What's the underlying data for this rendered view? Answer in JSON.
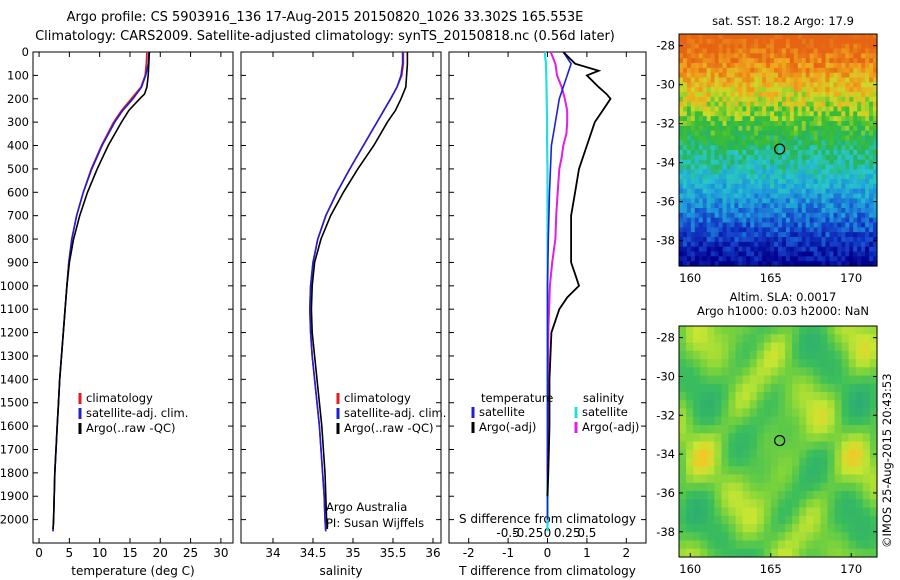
{
  "header": {
    "line1": "Argo profile: CS 5903916_136 17-Aug-2015 20150820_1026 33.302S 165.553E",
    "line2": "Climatology: CARS2009. Satellite-adjusted climatology: synTS_20150818.nc (0.56d later)"
  },
  "colors": {
    "climatology": "#e41a1c",
    "satellite_adj": "#1f1fd6",
    "argo": "#000000",
    "salinity_sat": "#22e0e0",
    "salinity_argo": "#e21ee2"
  },
  "chart_data": [
    {
      "type": "line",
      "panel": "temperature",
      "xlabel": "temperature (deg C)",
      "ylim": [
        2100,
        0
      ],
      "xlim": [
        -1,
        32
      ],
      "xticks": [
        0,
        5,
        10,
        15,
        20,
        25,
        30
      ],
      "yticks": [
        0,
        100,
        200,
        300,
        400,
        500,
        600,
        700,
        800,
        900,
        1000,
        1100,
        1200,
        1300,
        1400,
        1500,
        1600,
        1700,
        1800,
        1900,
        2000
      ],
      "legend": [
        "climatology",
        "satellite-adj. clim.",
        "Argo(..raw -QC)"
      ],
      "series": [
        {
          "name": "climatology",
          "depth": [
            0,
            50,
            100,
            150,
            200,
            250,
            300,
            400,
            500,
            600,
            700,
            800,
            900,
            1000,
            1100,
            1200,
            1300,
            1400,
            1500,
            1600,
            1700,
            1800,
            1900,
            2000,
            2050
          ],
          "values": [
            17.8,
            17.7,
            17.5,
            16.8,
            15.2,
            13.6,
            12.3,
            10.3,
            8.6,
            7.3,
            6.2,
            5.4,
            4.9,
            4.6,
            4.3,
            4.0,
            3.7,
            3.4,
            3.2,
            3.0,
            2.8,
            2.6,
            2.5,
            2.4,
            2.3
          ]
        },
        {
          "name": "satellite-adj. clim.",
          "depth": [
            0,
            50,
            100,
            150,
            200,
            250,
            300,
            400,
            500,
            600,
            700,
            800,
            900,
            1000,
            1100,
            1200,
            1300,
            1400,
            1500,
            1600,
            1700,
            1800,
            1900,
            2000,
            2050
          ],
          "values": [
            18.1,
            18.0,
            17.6,
            16.9,
            15.5,
            13.8,
            12.5,
            10.4,
            8.7,
            7.3,
            6.2,
            5.4,
            4.9,
            4.6,
            4.3,
            4.0,
            3.7,
            3.4,
            3.2,
            3.0,
            2.8,
            2.6,
            2.5,
            2.4,
            2.3
          ]
        },
        {
          "name": "Argo(..raw -QC)",
          "depth": [
            0,
            50,
            100,
            150,
            180,
            200,
            250,
            300,
            400,
            500,
            600,
            700,
            800,
            900,
            1000,
            1100,
            1200,
            1300,
            1400,
            1500,
            1600,
            1700,
            1800,
            1900,
            2000,
            2040
          ],
          "values": [
            18.2,
            18.1,
            18.0,
            17.8,
            17.4,
            16.6,
            14.8,
            13.6,
            11.4,
            9.6,
            8.0,
            6.7,
            5.7,
            5.0,
            4.6,
            4.3,
            4.0,
            3.7,
            3.4,
            3.2,
            3.0,
            2.8,
            2.6,
            2.5,
            2.4,
            2.3
          ]
        }
      ]
    },
    {
      "type": "line",
      "panel": "salinity",
      "xlabel": "salinity",
      "ylim": [
        2100,
        0
      ],
      "xlim": [
        33.6,
        36.1
      ],
      "xticks": [
        34,
        34.5,
        35,
        35.5,
        36
      ],
      "legend": [
        "climatology",
        "satellite-adj. clim.",
        "Argo(..raw -QC)"
      ],
      "annotation": [
        "Argo Australia",
        "PI: Susan Wijffels"
      ],
      "series": [
        {
          "name": "climatology",
          "depth": [
            0,
            50,
            100,
            150,
            200,
            300,
            400,
            500,
            600,
            700,
            800,
            900,
            1000,
            1100,
            1200,
            1300,
            1400,
            1500,
            1600,
            1700,
            1800,
            1900,
            2000,
            2050
          ],
          "values": [
            35.63,
            35.63,
            35.61,
            35.55,
            35.47,
            35.3,
            35.13,
            34.96,
            34.8,
            34.66,
            34.56,
            34.5,
            34.47,
            34.46,
            34.47,
            34.49,
            34.52,
            34.55,
            34.58,
            34.6,
            34.62,
            34.64,
            34.65,
            34.66
          ]
        },
        {
          "name": "satellite-adj. clim.",
          "depth": [
            0,
            50,
            100,
            150,
            200,
            300,
            400,
            500,
            600,
            700,
            800,
            900,
            1000,
            1100,
            1200,
            1300,
            1400,
            1500,
            1600,
            1700,
            1800,
            1900,
            2000,
            2050
          ],
          "values": [
            35.62,
            35.62,
            35.6,
            35.55,
            35.47,
            35.3,
            35.13,
            34.96,
            34.8,
            34.66,
            34.56,
            34.5,
            34.47,
            34.46,
            34.47,
            34.49,
            34.52,
            34.55,
            34.58,
            34.6,
            34.62,
            34.64,
            34.65,
            34.66
          ]
        },
        {
          "name": "Argo(..raw -QC)",
          "depth": [
            0,
            50,
            100,
            150,
            200,
            250,
            300,
            400,
            500,
            600,
            700,
            800,
            900,
            1000,
            1100,
            1200,
            1300,
            1400,
            1500,
            1600,
            1700,
            1800,
            1900,
            2000,
            2040
          ],
          "values": [
            35.68,
            35.68,
            35.67,
            35.66,
            35.6,
            35.53,
            35.43,
            35.26,
            35.06,
            34.88,
            34.72,
            34.6,
            34.52,
            34.49,
            34.48,
            34.49,
            34.52,
            34.55,
            34.58,
            34.61,
            34.63,
            34.65,
            34.66,
            34.67,
            34.68
          ]
        }
      ]
    },
    {
      "type": "line",
      "panel": "difference",
      "xlabel": "T difference from climatology",
      "xlabel_top": "S difference from climatology",
      "ylim": [
        2100,
        0
      ],
      "xlim": [
        -2.5,
        2.5
      ],
      "xticks_T": [
        -2,
        -1,
        0,
        1,
        2
      ],
      "xticks_S": [
        "-0.5",
        "-0.25",
        "0",
        "0.25",
        "0.5"
      ],
      "legend_temperature": [
        "temperature",
        "satellite",
        "Argo(-adj)"
      ],
      "legend_salinity": [
        "salinity",
        "satellite",
        "Argo(-adj)"
      ],
      "series": [
        {
          "name": "temperature satellite",
          "depth": [
            0,
            50,
            100,
            200,
            300,
            400,
            600,
            800,
            1000,
            1100,
            2000
          ],
          "values": [
            0.4,
            0.6,
            0.5,
            0.3,
            0.2,
            0.1,
            0.05,
            0.02,
            0.0,
            0.0,
            0.0
          ]
        },
        {
          "name": "temperature Argo(-adj)",
          "depth": [
            0,
            50,
            80,
            100,
            150,
            180,
            200,
            250,
            300,
            400,
            500,
            600,
            700,
            800,
            900,
            950,
            1000,
            1050,
            1100,
            1200,
            1400,
            1600,
            1800,
            1900
          ],
          "values": [
            0.4,
            0.7,
            1.3,
            1.0,
            1.3,
            1.5,
            1.6,
            1.4,
            1.2,
            1.0,
            0.8,
            0.7,
            0.6,
            0.6,
            0.6,
            0.7,
            0.8,
            0.5,
            0.3,
            0.1,
            0.05,
            0.05,
            0.02,
            0.0
          ]
        },
        {
          "name": "salinity satellite",
          "depth": [
            0,
            50,
            100,
            200,
            300,
            400,
            500,
            800,
            1000,
            2050
          ],
          "values": [
            -0.07,
            -0.04,
            -0.03,
            -0.02,
            -0.01,
            -0.01,
            0.0,
            0.0,
            0.0,
            0.0
          ]
        },
        {
          "name": "salinity Argo(-adj)",
          "depth": [
            0,
            50,
            100,
            150,
            200,
            250,
            300,
            350,
            400,
            450,
            500,
            600,
            700,
            800,
            900,
            1000,
            1100,
            1200,
            1500,
            1800
          ],
          "values": [
            0.04,
            0.1,
            0.12,
            0.18,
            0.22,
            0.25,
            0.25,
            0.24,
            0.2,
            0.18,
            0.15,
            0.13,
            0.11,
            0.1,
            0.06,
            0.03,
            0.02,
            0.01,
            0.01,
            0.0
          ]
        }
      ]
    },
    {
      "type": "heatmap",
      "panel": "sst",
      "title": "sat. SST: 18.2  Argo: 17.9",
      "xticks": [
        160,
        165,
        170
      ],
      "yticks": [
        -28,
        -30,
        -32,
        -34,
        -36,
        -38
      ],
      "marker": {
        "lon": 165.553,
        "lat": -33.302
      }
    },
    {
      "type": "heatmap",
      "panel": "sla",
      "title": [
        "Altim. SLA: 0.0017",
        "Argo h1000: 0.03 h2000: NaN"
      ],
      "xticks": [
        160,
        165,
        170
      ],
      "yticks": [
        -28,
        -30,
        -32,
        -34,
        -36,
        -38
      ],
      "marker": {
        "lon": 165.553,
        "lat": -33.302
      }
    }
  ],
  "credit": "©IMOS 25-Aug-2015 20:43:53"
}
